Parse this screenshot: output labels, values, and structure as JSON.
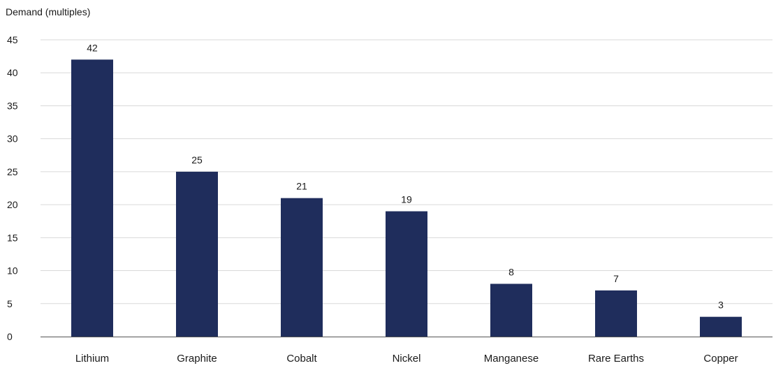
{
  "chart_data": {
    "type": "bar",
    "title": "",
    "xlabel": "",
    "ylabel": "Demand (multiples)",
    "ylim": [
      0,
      45
    ],
    "yticks": [
      0,
      5,
      10,
      15,
      20,
      25,
      30,
      35,
      40,
      45
    ],
    "grid": true,
    "legend": "none",
    "bar_color": "#1f2d5c",
    "categories": [
      "Lithium",
      "Graphite",
      "Cobalt",
      "Nickel",
      "Manganese",
      "Rare Earths",
      "Copper"
    ],
    "values": [
      42,
      25,
      21,
      19,
      8,
      7,
      3
    ],
    "data_labels": [
      "42",
      "25",
      "21",
      "19",
      "8",
      "7",
      "3"
    ]
  }
}
